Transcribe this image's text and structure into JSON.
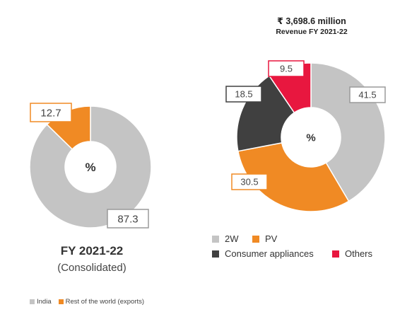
{
  "chart_data": [
    {
      "type": "pie",
      "style": "donut",
      "caption": "FY 2021-22",
      "subcaption": "(Consolidated)",
      "center_label": "%",
      "slices": [
        {
          "label": "India",
          "value": 87.3,
          "color": "#c4c4c4",
          "label_text": "87.3",
          "box_color": "#9a9a9a"
        },
        {
          "label": "Rest of the world (exports)",
          "value": 12.7,
          "color": "#f08a24",
          "label_text": "12.7",
          "box_color": "#f08a24"
        }
      ],
      "legend": [
        "India",
        "Rest of the world (exports)"
      ]
    },
    {
      "type": "pie",
      "style": "donut",
      "title": "₹ 3,698.6 million",
      "subtitle": "Revenue FY 2021-22",
      "center_label": "%",
      "slices": [
        {
          "label": "2W",
          "value": 41.5,
          "color": "#c4c4c4",
          "label_text": "41.5",
          "box_color": "#9a9a9a"
        },
        {
          "label": "PV",
          "value": 30.5,
          "color": "#f08a24",
          "label_text": "30.5",
          "box_color": "#f08a24"
        },
        {
          "label": "Consumer appliances",
          "value": 18.5,
          "color": "#404040",
          "label_text": "18.5",
          "box_color": "#404040"
        },
        {
          "label": "Others",
          "value": 9.5,
          "color": "#e8173f",
          "label_text": "9.5",
          "box_color": "#e8173f"
        }
      ],
      "legend": [
        "2W",
        "PV",
        "Consumer appliances",
        "Others"
      ]
    }
  ]
}
